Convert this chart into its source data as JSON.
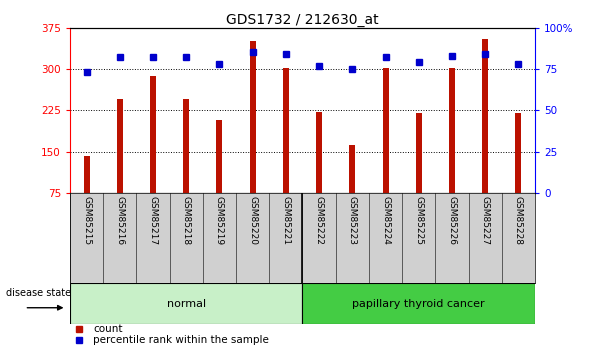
{
  "title": "GDS1732 / 212630_at",
  "samples": [
    "GSM85215",
    "GSM85216",
    "GSM85217",
    "GSM85218",
    "GSM85219",
    "GSM85220",
    "GSM85221",
    "GSM85222",
    "GSM85223",
    "GSM85224",
    "GSM85225",
    "GSM85226",
    "GSM85227",
    "GSM85228"
  ],
  "counts": [
    143,
    245,
    287,
    245,
    207,
    350,
    302,
    222,
    163,
    302,
    220,
    302,
    355,
    220
  ],
  "percentiles": [
    73,
    82,
    82,
    82,
    78,
    85,
    84,
    77,
    75,
    82,
    79,
    83,
    84,
    78
  ],
  "groups": [
    {
      "label": "normal",
      "start": 0,
      "end": 7,
      "color": "#c8f0c8"
    },
    {
      "label": "papillary thyroid cancer",
      "start": 7,
      "end": 14,
      "color": "#44cc44"
    }
  ],
  "group_separator_idx": 7,
  "ylim_left": [
    75,
    375
  ],
  "ylim_right": [
    0,
    100
  ],
  "yticks_left": [
    75,
    150,
    225,
    300,
    375
  ],
  "yticks_right": [
    0,
    25,
    50,
    75,
    100
  ],
  "bar_color": "#bb1100",
  "dot_color": "#0000cc",
  "bg_color": "#ffffff",
  "disease_state_label": "disease state",
  "legend_count": "count",
  "legend_percentile": "percentile rank within the sample",
  "title_fontsize": 10,
  "tick_fontsize": 7.5,
  "sample_fontsize": 6.5,
  "label_fontsize": 8,
  "bar_width": 0.18
}
